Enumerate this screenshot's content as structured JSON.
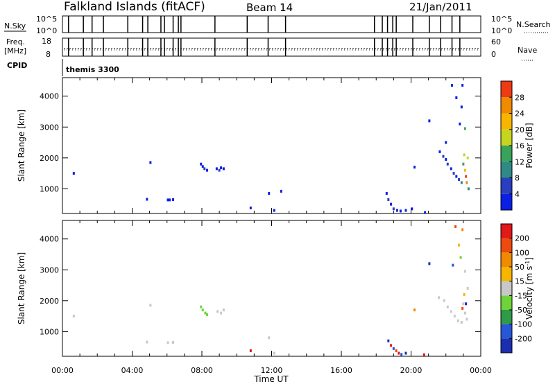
{
  "header": {
    "station": "Falkland Islands (fitACF)",
    "beam": "Beam 14",
    "date": "21/Jan/2011"
  },
  "strips": {
    "nsky_label": "N.Sky",
    "nsearch_label": "N.Search",
    "freq_label_1": "Freq.",
    "freq_label_2": "[MHz]",
    "nave_label": "Nave",
    "cpid_label": "CPID",
    "cpid_text": "themis 3300",
    "noise_ticks_left": [
      "10^5",
      "10^0"
    ],
    "noise_ticks_right": [
      "10^5",
      "10^0"
    ],
    "freq_ticks": [
      "18",
      "8"
    ],
    "nave_ticks": [
      "60",
      "0"
    ],
    "mode_change_times_h": [
      0.35,
      1.2,
      1.7,
      2.35,
      3.75,
      4.6,
      4.9,
      5.65,
      5.85,
      6.35,
      6.65,
      6.8,
      8.75,
      10.6,
      11.8,
      12.8,
      17.9,
      18.35,
      18.65,
      18.95,
      19.15,
      20.1,
      21.05,
      21.7,
      22.35,
      22.8
    ]
  },
  "time_axis": {
    "label": "Time UT",
    "tick_labels": [
      "00:00",
      "04:00",
      "08:00",
      "12:00",
      "16:00",
      "20:00",
      "00:00"
    ]
  },
  "chart_data": [
    {
      "type": "scatter",
      "title": "Power",
      "xlabel": "Time UT",
      "ylabel": "Slant Range [km]",
      "xlim": [
        0,
        24
      ],
      "ylim": [
        200,
        4600
      ],
      "y_tick_labels": [
        "1000",
        "2000",
        "3000",
        "4000"
      ],
      "colorbar": {
        "label": "Power [dB]",
        "tick_labels": [
          "4",
          "8",
          "12",
          "16",
          "20",
          "24",
          "28"
        ],
        "colors": [
          "#0c1fe6",
          "#2a3ec0",
          "#2f8a86",
          "#3aa35a",
          "#c6d620",
          "#f7b500",
          "#f08a00",
          "#ee3b14"
        ]
      },
      "points": [
        [
          0.65,
          1500,
          0
        ],
        [
          4.85,
          660,
          0
        ],
        [
          5.05,
          1850,
          0
        ],
        [
          6.05,
          640,
          0
        ],
        [
          6.15,
          640,
          0
        ],
        [
          6.35,
          650,
          0
        ],
        [
          7.95,
          1800,
          0
        ],
        [
          8.05,
          1720,
          0
        ],
        [
          8.15,
          1650,
          1
        ],
        [
          8.3,
          1600,
          0
        ],
        [
          8.85,
          1650,
          0
        ],
        [
          9.0,
          1600,
          1
        ],
        [
          9.1,
          1680,
          0
        ],
        [
          9.25,
          1650,
          0
        ],
        [
          10.8,
          380,
          0
        ],
        [
          11.85,
          850,
          0
        ],
        [
          12.15,
          300,
          0
        ],
        [
          12.55,
          920,
          0
        ],
        [
          18.6,
          850,
          0
        ],
        [
          18.7,
          650,
          1
        ],
        [
          18.85,
          500,
          0
        ],
        [
          19.0,
          350,
          1
        ],
        [
          19.2,
          300,
          0
        ],
        [
          19.4,
          280,
          0
        ],
        [
          19.7,
          300,
          0
        ],
        [
          20.05,
          350,
          0
        ],
        [
          20.2,
          1700,
          0
        ],
        [
          20.8,
          230,
          0
        ],
        [
          21.05,
          3200,
          0
        ],
        [
          21.65,
          2200,
          0
        ],
        [
          21.85,
          2050,
          1
        ],
        [
          22.0,
          1950,
          0
        ],
        [
          22.1,
          1800,
          1
        ],
        [
          22.3,
          1650,
          0
        ],
        [
          22.45,
          1500,
          1
        ],
        [
          22.6,
          1400,
          0
        ],
        [
          22.75,
          1300,
          1
        ],
        [
          22.9,
          1200,
          2
        ],
        [
          23.0,
          1800,
          3
        ],
        [
          23.05,
          2100,
          4
        ],
        [
          23.1,
          1600,
          5
        ],
        [
          23.15,
          1400,
          7
        ],
        [
          23.2,
          1200,
          6
        ],
        [
          23.25,
          2000,
          4
        ],
        [
          23.1,
          2950,
          3
        ],
        [
          22.95,
          4350,
          0
        ],
        [
          22.8,
          3100,
          0
        ],
        [
          22.6,
          3950,
          0
        ],
        [
          22.9,
          3650,
          0
        ],
        [
          22.35,
          4350,
          0
        ],
        [
          22.0,
          2500,
          0
        ],
        [
          23.3,
          1000,
          2
        ]
      ]
    },
    {
      "type": "scatter",
      "title": "Velocity",
      "xlabel": "Time UT",
      "ylabel": "Slant Range [km]",
      "xlim": [
        0,
        24
      ],
      "ylim": [
        200,
        4600
      ],
      "y_tick_labels": [
        "1000",
        "2000",
        "3000",
        "4000"
      ],
      "colorbar": {
        "label": "Velocity [m s^-1]",
        "tick_labels": [
          "200",
          "100",
          "50",
          "15",
          "-15",
          "-50",
          "-100",
          "-200"
        ],
        "colors": [
          "#1a2fb0",
          "#2856d8",
          "#2e9a4a",
          "#6fd43a",
          "#c8c8c8",
          "#f7b500",
          "#f08a00",
          "#ee4a10",
          "#e31818"
        ]
      },
      "points": [
        [
          0.65,
          1500,
          4
        ],
        [
          4.85,
          660,
          4
        ],
        [
          5.05,
          1850,
          4
        ],
        [
          6.05,
          640,
          4
        ],
        [
          6.35,
          650,
          4
        ],
        [
          7.95,
          1800,
          3
        ],
        [
          8.05,
          1700,
          3
        ],
        [
          8.2,
          1600,
          3
        ],
        [
          8.3,
          1550,
          3
        ],
        [
          8.9,
          1650,
          4
        ],
        [
          9.1,
          1600,
          4
        ],
        [
          9.25,
          1700,
          4
        ],
        [
          10.8,
          380,
          8
        ],
        [
          11.85,
          800,
          4
        ],
        [
          12.15,
          300,
          4
        ],
        [
          18.7,
          700,
          0
        ],
        [
          18.85,
          550,
          8
        ],
        [
          19.0,
          450,
          1
        ],
        [
          19.15,
          380,
          7
        ],
        [
          19.3,
          300,
          8
        ],
        [
          19.45,
          260,
          1
        ],
        [
          19.7,
          300,
          0
        ],
        [
          20.2,
          1700,
          6
        ],
        [
          20.75,
          250,
          8
        ],
        [
          21.05,
          3200,
          0
        ],
        [
          21.6,
          2100,
          4
        ],
        [
          21.9,
          2000,
          4
        ],
        [
          22.1,
          1800,
          4
        ],
        [
          22.3,
          1650,
          4
        ],
        [
          22.5,
          1500,
          4
        ],
        [
          22.7,
          1350,
          4
        ],
        [
          22.9,
          1300,
          4
        ],
        [
          23.0,
          1900,
          4
        ],
        [
          23.1,
          1600,
          4
        ],
        [
          23.2,
          1400,
          4
        ],
        [
          23.25,
          2400,
          4
        ],
        [
          23.1,
          2950,
          4
        ],
        [
          22.95,
          4300,
          6
        ],
        [
          22.75,
          3800,
          5
        ],
        [
          22.55,
          4400,
          7
        ],
        [
          22.85,
          3400,
          3
        ],
        [
          23.05,
          2200,
          5
        ],
        [
          22.95,
          1750,
          7
        ],
        [
          23.15,
          1900,
          0
        ],
        [
          22.4,
          3150,
          1
        ]
      ]
    }
  ]
}
